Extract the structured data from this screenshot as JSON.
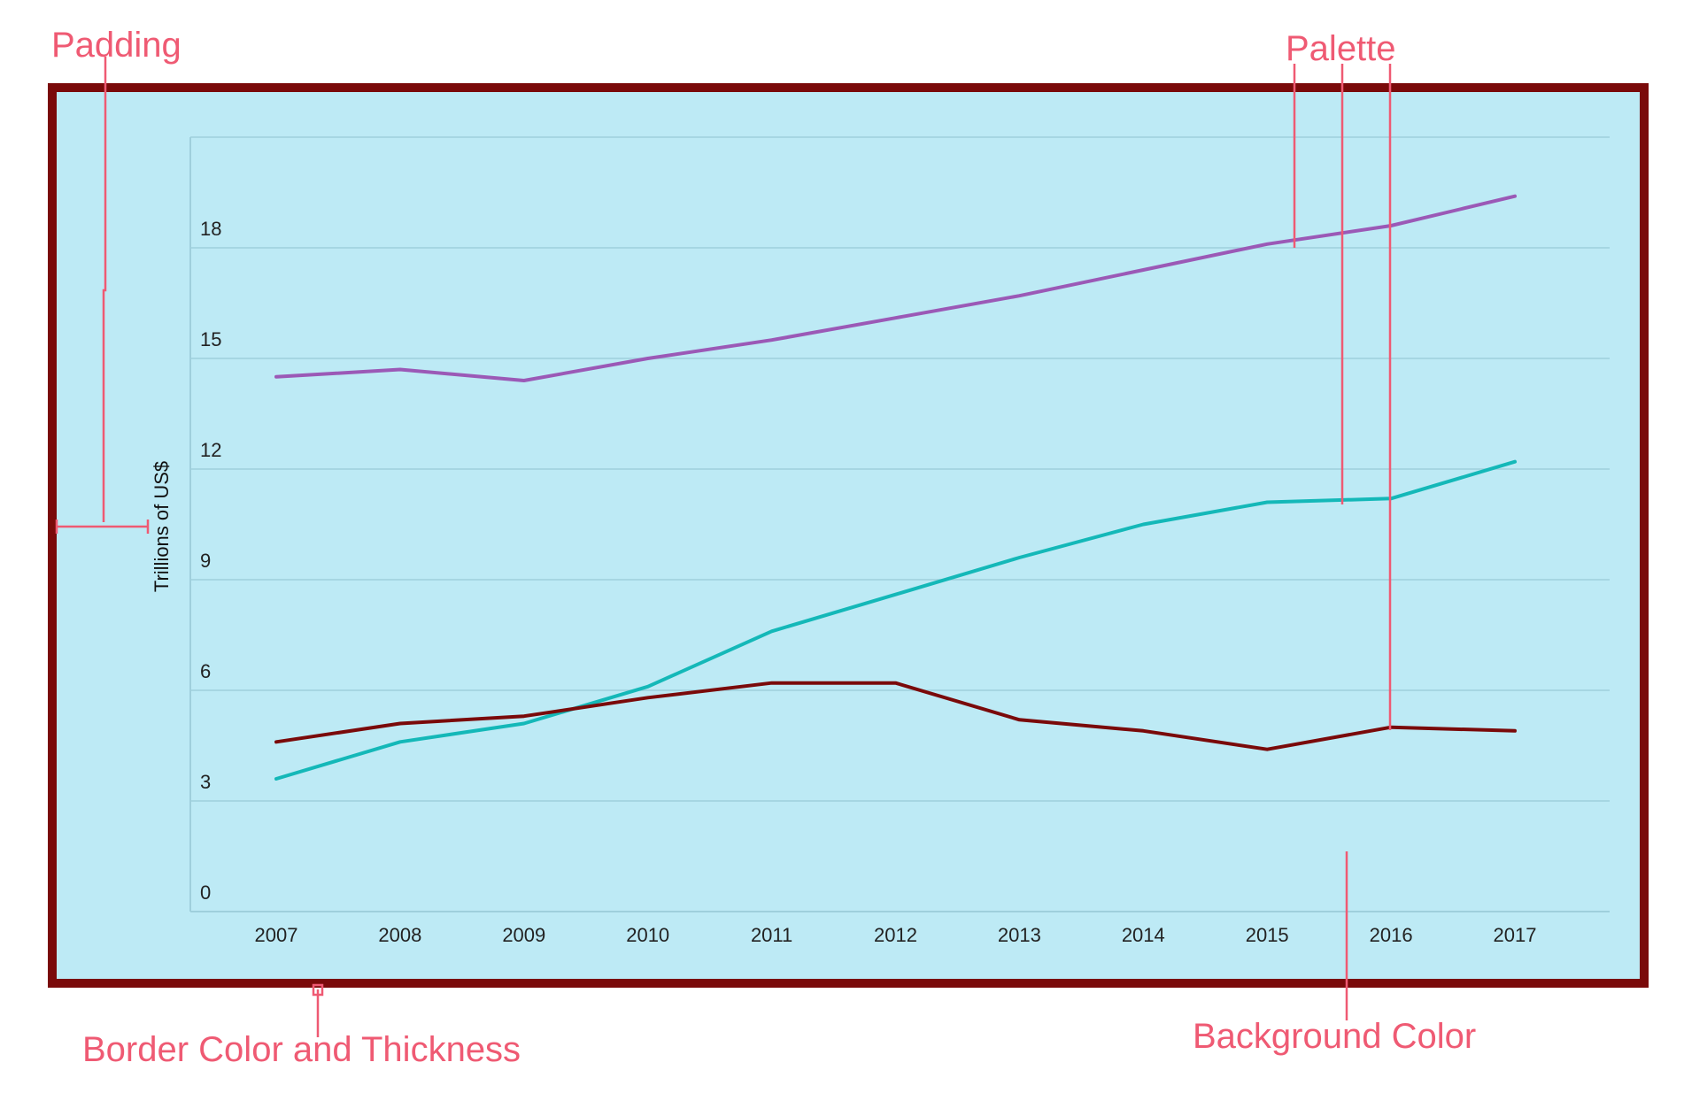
{
  "annotations": {
    "padding": "Padding",
    "palette": "Palette",
    "border": "Border Color and Thickness",
    "background": "Background Color"
  },
  "colors": {
    "annotation": "#ef5a73",
    "border": "#7a0a0a",
    "background": "#bdeaf5",
    "grid": "#9fcfdc",
    "axis": "#9fcfdc",
    "series": [
      "#9b59b6",
      "#14b8b8",
      "#7a0a0a"
    ]
  },
  "chart_data": {
    "type": "line",
    "title": "",
    "xlabel": "",
    "ylabel": "Trillions of US$",
    "x": [
      "2007",
      "2008",
      "2009",
      "2010",
      "2011",
      "2012",
      "2013",
      "2014",
      "2015",
      "2016",
      "2017"
    ],
    "ylim": [
      0,
      21
    ],
    "yticks": [
      0,
      3,
      6,
      9,
      12,
      15,
      18
    ],
    "grid": true,
    "legend": "none",
    "series": [
      {
        "values": [
          14.5,
          14.7,
          14.4,
          15.0,
          15.5,
          16.1,
          16.7,
          17.4,
          18.1,
          18.6,
          19.4
        ],
        "color": "#9b59b6"
      },
      {
        "values": [
          3.6,
          4.6,
          5.1,
          6.1,
          7.6,
          8.6,
          9.6,
          10.5,
          11.1,
          11.2,
          12.2
        ],
        "color": "#14b8b8"
      },
      {
        "values": [
          4.6,
          5.1,
          5.3,
          5.8,
          6.2,
          6.2,
          5.2,
          4.9,
          4.4,
          5.0,
          4.9
        ],
        "color": "#7a0a0a"
      }
    ]
  }
}
